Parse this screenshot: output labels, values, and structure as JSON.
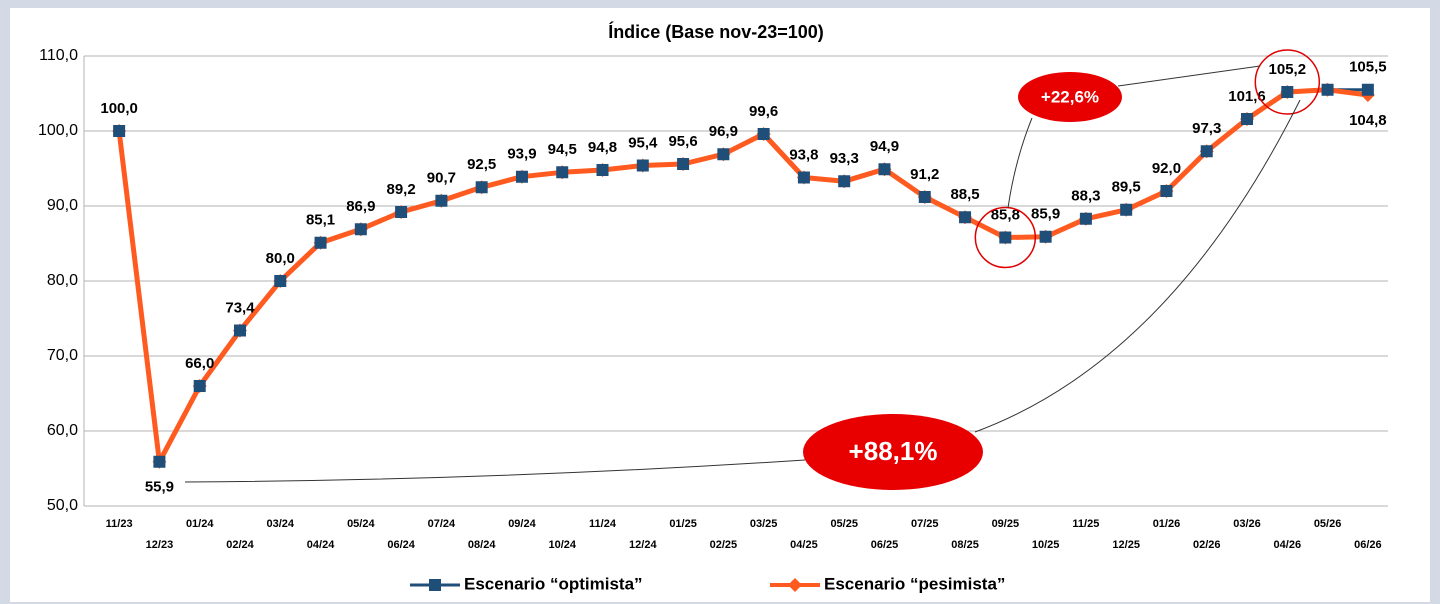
{
  "chart_data": {
    "type": "line",
    "title": "Índice (Base nov-23=100)",
    "categories": [
      "11/23",
      "12/23",
      "01/24",
      "02/24",
      "03/24",
      "04/24",
      "05/24",
      "06/24",
      "07/24",
      "08/24",
      "09/24",
      "10/24",
      "11/24",
      "12/24",
      "01/25",
      "02/25",
      "03/25",
      "04/25",
      "05/25",
      "06/25",
      "07/25",
      "08/25",
      "09/25",
      "10/25",
      "11/25",
      "12/25",
      "01/26",
      "02/26",
      "03/26",
      "04/26",
      "05/26",
      "06/26"
    ],
    "series": [
      {
        "name": "Escenario “optimista”",
        "color": "#1f4e79",
        "marker": "square",
        "values": [
          100.0,
          55.9,
          66.0,
          73.4,
          80.0,
          85.1,
          86.9,
          89.2,
          90.7,
          92.5,
          93.9,
          94.5,
          94.8,
          95.4,
          95.6,
          96.9,
          99.6,
          93.8,
          93.3,
          94.9,
          91.2,
          88.5,
          85.8,
          85.9,
          88.3,
          89.5,
          92.0,
          97.3,
          101.6,
          105.2,
          105.5,
          105.5
        ],
        "value_labels": [
          "100,0",
          "55,9",
          "66,0",
          "73,4",
          "80,0",
          "85,1",
          "86,9",
          "89,2",
          "90,7",
          "92,5",
          "93,9",
          "94,5",
          "94,8",
          "95,4",
          "95,6",
          "96,9",
          "99,6",
          "93,8",
          "93,3",
          "94,9",
          "91,2",
          "88,5",
          "85,8",
          "85,9",
          "88,3",
          "89,5",
          "92,0",
          "97,3",
          "101,6",
          "105,2",
          null,
          "105,5"
        ]
      },
      {
        "name": "Escenario “pesimista”",
        "color": "#ff5a1f",
        "marker": "diamond",
        "values": [
          100.0,
          55.9,
          66.0,
          73.4,
          80.0,
          85.1,
          86.9,
          89.2,
          90.7,
          92.5,
          93.9,
          94.5,
          94.8,
          95.4,
          95.6,
          96.9,
          99.6,
          93.8,
          93.3,
          94.9,
          91.2,
          88.5,
          85.8,
          85.9,
          88.3,
          89.5,
          92.0,
          97.3,
          101.6,
          105.2,
          105.5,
          104.8
        ],
        "value_labels": [
          null,
          null,
          null,
          null,
          null,
          null,
          null,
          null,
          null,
          null,
          null,
          null,
          null,
          null,
          null,
          null,
          null,
          null,
          null,
          null,
          null,
          null,
          null,
          null,
          null,
          null,
          null,
          null,
          null,
          null,
          null,
          "104,8"
        ]
      }
    ],
    "ylim": [
      50,
      110
    ],
    "yticks": [
      {
        "value": 50,
        "label": "50,0"
      },
      {
        "value": 60,
        "label": "60,0"
      },
      {
        "value": 70,
        "label": "70,0"
      },
      {
        "value": 80,
        "label": "80,0"
      },
      {
        "value": 90,
        "label": "90,0"
      },
      {
        "value": 100,
        "label": "100,0"
      },
      {
        "value": 110,
        "label": "110,0"
      }
    ],
    "grid": true,
    "legend": "bottom",
    "annotations": [
      "+22,6%",
      "+88,1%"
    ]
  }
}
